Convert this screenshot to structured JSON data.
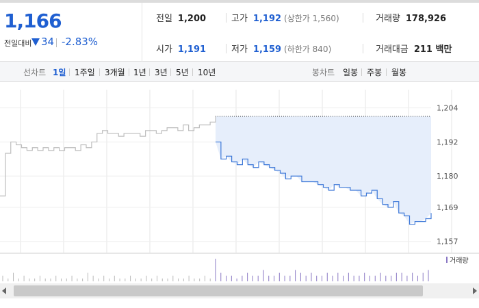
{
  "quote": {
    "price": "1,166",
    "change_label": "전일대비",
    "change_value": "34",
    "change_pct": "-2.83%",
    "prev_label": "전일",
    "prev_value": "1,200",
    "high_label": "고가",
    "high_value": "1,192",
    "upper_limit": "(상한가 1,560)",
    "volume_label": "거래량",
    "volume_value": "178,926",
    "open_label": "시가",
    "open_value": "1,191",
    "low_label": "저가",
    "low_value": "1,159",
    "lower_limit": "(하한가 840)",
    "amount_label": "거래대금",
    "amount_value": "211 백만"
  },
  "tabs": {
    "line_label": "선차트",
    "line_items": [
      "1일",
      "1주일",
      "3개월",
      "1년",
      "3년",
      "5년",
      "10년"
    ],
    "active": "1일",
    "candle_label": "봉차트",
    "candle_items": [
      "일봉",
      "주봉",
      "월봉"
    ]
  },
  "chart_data": {
    "type": "line",
    "yticks": [
      "1,204",
      "1,192",
      "1,180",
      "1,169",
      "1,157"
    ],
    "ylim": [
      1155,
      1208
    ],
    "reference_value": 1200,
    "volume_legend": "거래량",
    "series": [
      {
        "color": "#bdbdbd",
        "x": [
          0,
          2,
          4,
          6,
          8,
          10,
          12,
          14,
          16,
          18,
          20,
          22,
          24,
          26,
          28,
          30,
          32,
          34,
          36,
          38,
          40,
          42,
          44,
          46,
          48,
          50,
          52,
          54,
          56,
          58,
          60,
          62,
          64,
          66,
          68,
          70,
          72,
          74,
          76,
          78,
          80
        ],
        "y": [
          1173,
          1188,
          1192,
          1191,
          1190,
          1189,
          1190,
          1189,
          1190,
          1189,
          1190,
          1189,
          1190,
          1190,
          1189,
          1191,
          1190,
          1192,
          1195,
          1196,
          1195,
          1195,
          1194,
          1195,
          1195,
          1195,
          1194,
          1196,
          1196,
          1195,
          1196,
          1197,
          1197,
          1196,
          1198,
          1196,
          1197,
          1198,
          1198,
          1199,
          1201
        ]
      },
      {
        "color": "#3d78d8",
        "x": [
          80,
          82,
          84,
          86,
          88,
          90,
          92,
          94,
          96,
          98,
          100,
          102,
          104,
          106,
          108,
          110,
          112,
          114,
          116,
          118,
          120,
          122,
          124,
          126,
          128,
          130,
          132,
          134,
          136,
          138,
          140,
          142,
          144,
          146,
          148,
          150,
          152,
          154,
          156,
          158,
          160
        ],
        "y": [
          1192,
          1186,
          1187,
          1185,
          1184,
          1186,
          1184,
          1183,
          1185,
          1184,
          1183,
          1182,
          1181,
          1179,
          1180,
          1180,
          1178,
          1178,
          1178,
          1177,
          1176,
          1175,
          1177,
          1176,
          1176,
          1175,
          1175,
          1173,
          1174,
          1175,
          1172,
          1170,
          1169,
          1171,
          1167,
          1166,
          1163,
          1164,
          1164,
          1165,
          1167
        ]
      }
    ],
    "volume": [
      2,
      1,
      3,
      1,
      2,
      1,
      1,
      2,
      1,
      1,
      2,
      1,
      1,
      2,
      1,
      1,
      3,
      2,
      1,
      2,
      1,
      2,
      1,
      1,
      2,
      1,
      1,
      2,
      1,
      2,
      1,
      1,
      2,
      1,
      1,
      2,
      1,
      1,
      2,
      1,
      8,
      3,
      2,
      2,
      1,
      2,
      3,
      2,
      2,
      4,
      2,
      2,
      3,
      2,
      2,
      4,
      3,
      2,
      3,
      2,
      2,
      3,
      2,
      3,
      2,
      3,
      2,
      2,
      3,
      2,
      2,
      3,
      2,
      2,
      3,
      3,
      2,
      3,
      2,
      3,
      4
    ]
  }
}
